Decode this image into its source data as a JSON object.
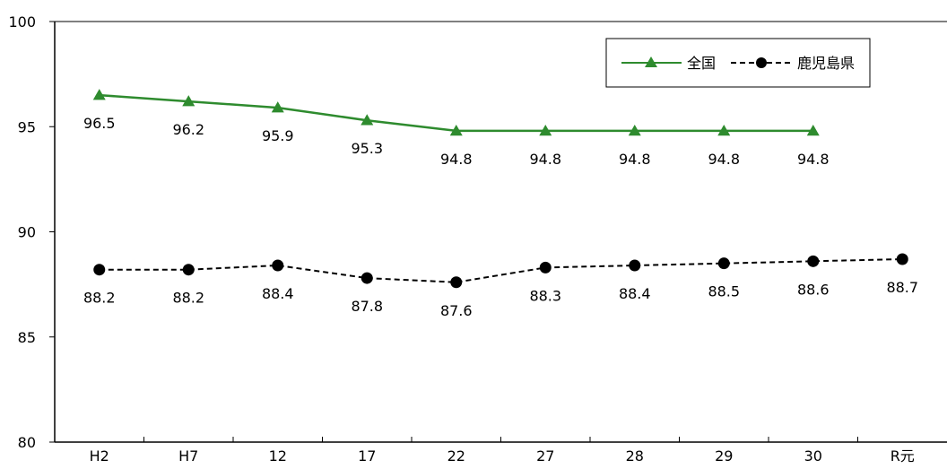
{
  "chart_data": {
    "type": "line",
    "categories": [
      "H2",
      "H7",
      "12",
      "17",
      "22",
      "27",
      "28",
      "29",
      "30",
      "R元"
    ],
    "ylim": [
      80,
      100
    ],
    "yticks": [
      80,
      85,
      90,
      95,
      100
    ],
    "grid": false,
    "legend": "top-right",
    "series": [
      {
        "name": "全国",
        "color": "#2e8b2e",
        "marker": "triangle",
        "line": "solid",
        "values": [
          96.5,
          96.2,
          95.9,
          95.3,
          94.8,
          94.8,
          94.8,
          94.8,
          94.8,
          null
        ],
        "labels": [
          "96.5",
          "96.2",
          "95.9",
          "95.3",
          "94.8",
          "94.8",
          "94.8",
          "94.8",
          "94.8",
          ""
        ]
      },
      {
        "name": "鹿児島県",
        "color": "#000000",
        "marker": "circle",
        "line": "dashed",
        "values": [
          88.2,
          88.2,
          88.4,
          87.8,
          87.6,
          88.3,
          88.4,
          88.5,
          88.6,
          88.7
        ],
        "labels": [
          "88.2",
          "88.2",
          "88.4",
          "87.8",
          "87.6",
          "88.3",
          "88.4",
          "88.5",
          "88.6",
          "88.7"
        ]
      }
    ]
  }
}
